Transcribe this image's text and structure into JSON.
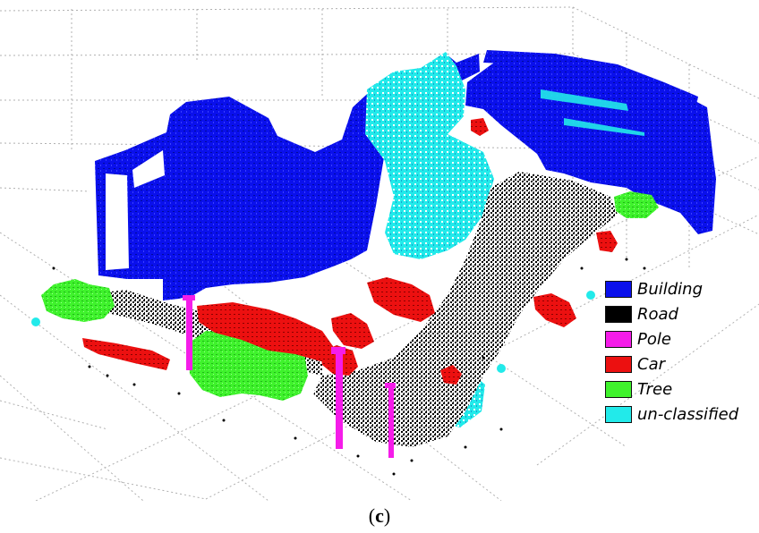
{
  "legend": {
    "items": [
      {
        "label": "Building",
        "color": "#0a10ec"
      },
      {
        "label": "Road",
        "color": "#000000"
      },
      {
        "label": "Pole",
        "color": "#f51ce9"
      },
      {
        "label": "Car",
        "color": "#ec1010"
      },
      {
        "label": "Tree",
        "color": "#3ff22c"
      },
      {
        "label": "un-classified",
        "color": "#22eaea"
      }
    ]
  },
  "caption": {
    "open": "(",
    "letter": "c",
    "close": ")"
  }
}
